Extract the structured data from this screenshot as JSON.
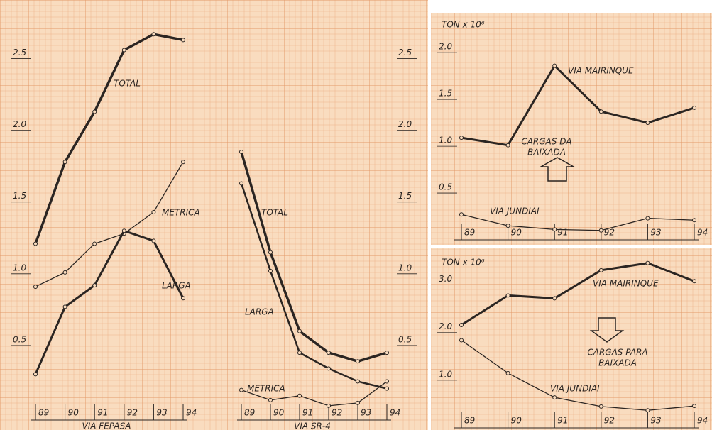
{
  "chart_data": [
    {
      "type": "line",
      "subtitle": "VIA FEPASA",
      "categories": [
        "89",
        "90",
        "91",
        "92",
        "93",
        "94"
      ],
      "ylim": [
        0,
        2.75
      ],
      "yticks": [
        0.5,
        {
          "value": 1,
          "label": "1.0"
        },
        1.5,
        {
          "value": 2,
          "label": "2.0"
        },
        2.5
      ],
      "series": [
        {
          "name": "TOTAL",
          "color": "#2b2522",
          "values": [
            1.17,
            1.74,
            2.09,
            2.52,
            2.63,
            2.59
          ]
        },
        {
          "name": "METRICA",
          "color": "#2b2522",
          "values": [
            0.87,
            0.97,
            1.17,
            1.24,
            1.39,
            1.74
          ]
        },
        {
          "name": "LARGA",
          "color": "#2b2522",
          "values": [
            0.26,
            0.73,
            0.88,
            1.26,
            1.19,
            0.79
          ]
        }
      ]
    },
    {
      "type": "line",
      "subtitle": "VIA SR-4",
      "categories": [
        "89",
        "90",
        "91",
        "92",
        "93",
        "94"
      ],
      "ylim": [
        0,
        2.75
      ],
      "yticks": [
        0.5,
        {
          "value": 1,
          "label": "1.0"
        },
        1.5,
        {
          "value": 2,
          "label": "2.0"
        },
        2.5
      ],
      "series": [
        {
          "name": "TOTAL",
          "color": "#2b2522",
          "values": [
            1.81,
            1.11,
            0.56,
            0.41,
            0.35,
            0.41
          ]
        },
        {
          "name": "LARGA",
          "color": "#2b2522",
          "values": [
            1.59,
            0.98,
            0.41,
            0.3,
            0.21,
            0.16
          ]
        },
        {
          "name": "METRICA",
          "color": "#2b2522",
          "values": [
            0.15,
            0.08,
            0.11,
            0.04,
            0.06,
            0.21
          ]
        }
      ]
    },
    {
      "type": "line",
      "title": "TON x 10⁶",
      "categories": [
        "89",
        "90",
        "91",
        "92",
        "93",
        "94"
      ],
      "ylim": [
        0,
        2.1
      ],
      "yticks": [
        0.5,
        {
          "value": 1,
          "label": "1.0"
        },
        1.5,
        {
          "value": 2,
          "label": "2.0"
        }
      ],
      "annotation": [
        "CARGAS DA",
        "BAIXADA"
      ],
      "series": [
        {
          "name": "VIA MAIRINQUE",
          "color": "#2b2522",
          "values": [
            1.03,
            0.95,
            1.8,
            1.31,
            1.19,
            1.35
          ]
        },
        {
          "name": "VIA JUNDIAI",
          "color": "#2b2522",
          "values": [
            0.21,
            0.09,
            0.05,
            0.04,
            0.17,
            0.15
          ]
        }
      ]
    },
    {
      "type": "line",
      "title": "TON x 10⁶",
      "categories": [
        "89",
        "90",
        "91",
        "92",
        "93",
        "94"
      ],
      "ylim": [
        0,
        3.5
      ],
      "yticks": [
        {
          "value": 1,
          "label": "1.0"
        },
        {
          "value": 2,
          "label": "2.0"
        },
        {
          "value": 3,
          "label": "3.0"
        }
      ],
      "annotation": [
        "CARGAS PARA",
        "BAIXADA"
      ],
      "series": [
        {
          "name": "VIA MAIRINQUE",
          "color": "#2b2522",
          "values": [
            2.04,
            2.66,
            2.6,
            3.19,
            3.34,
            2.96
          ]
        },
        {
          "name": "VIA JUNDIAI",
          "color": "#2b2522",
          "values": [
            1.72,
            1.03,
            0.52,
            0.33,
            0.25,
            0.34
          ]
        }
      ]
    }
  ]
}
